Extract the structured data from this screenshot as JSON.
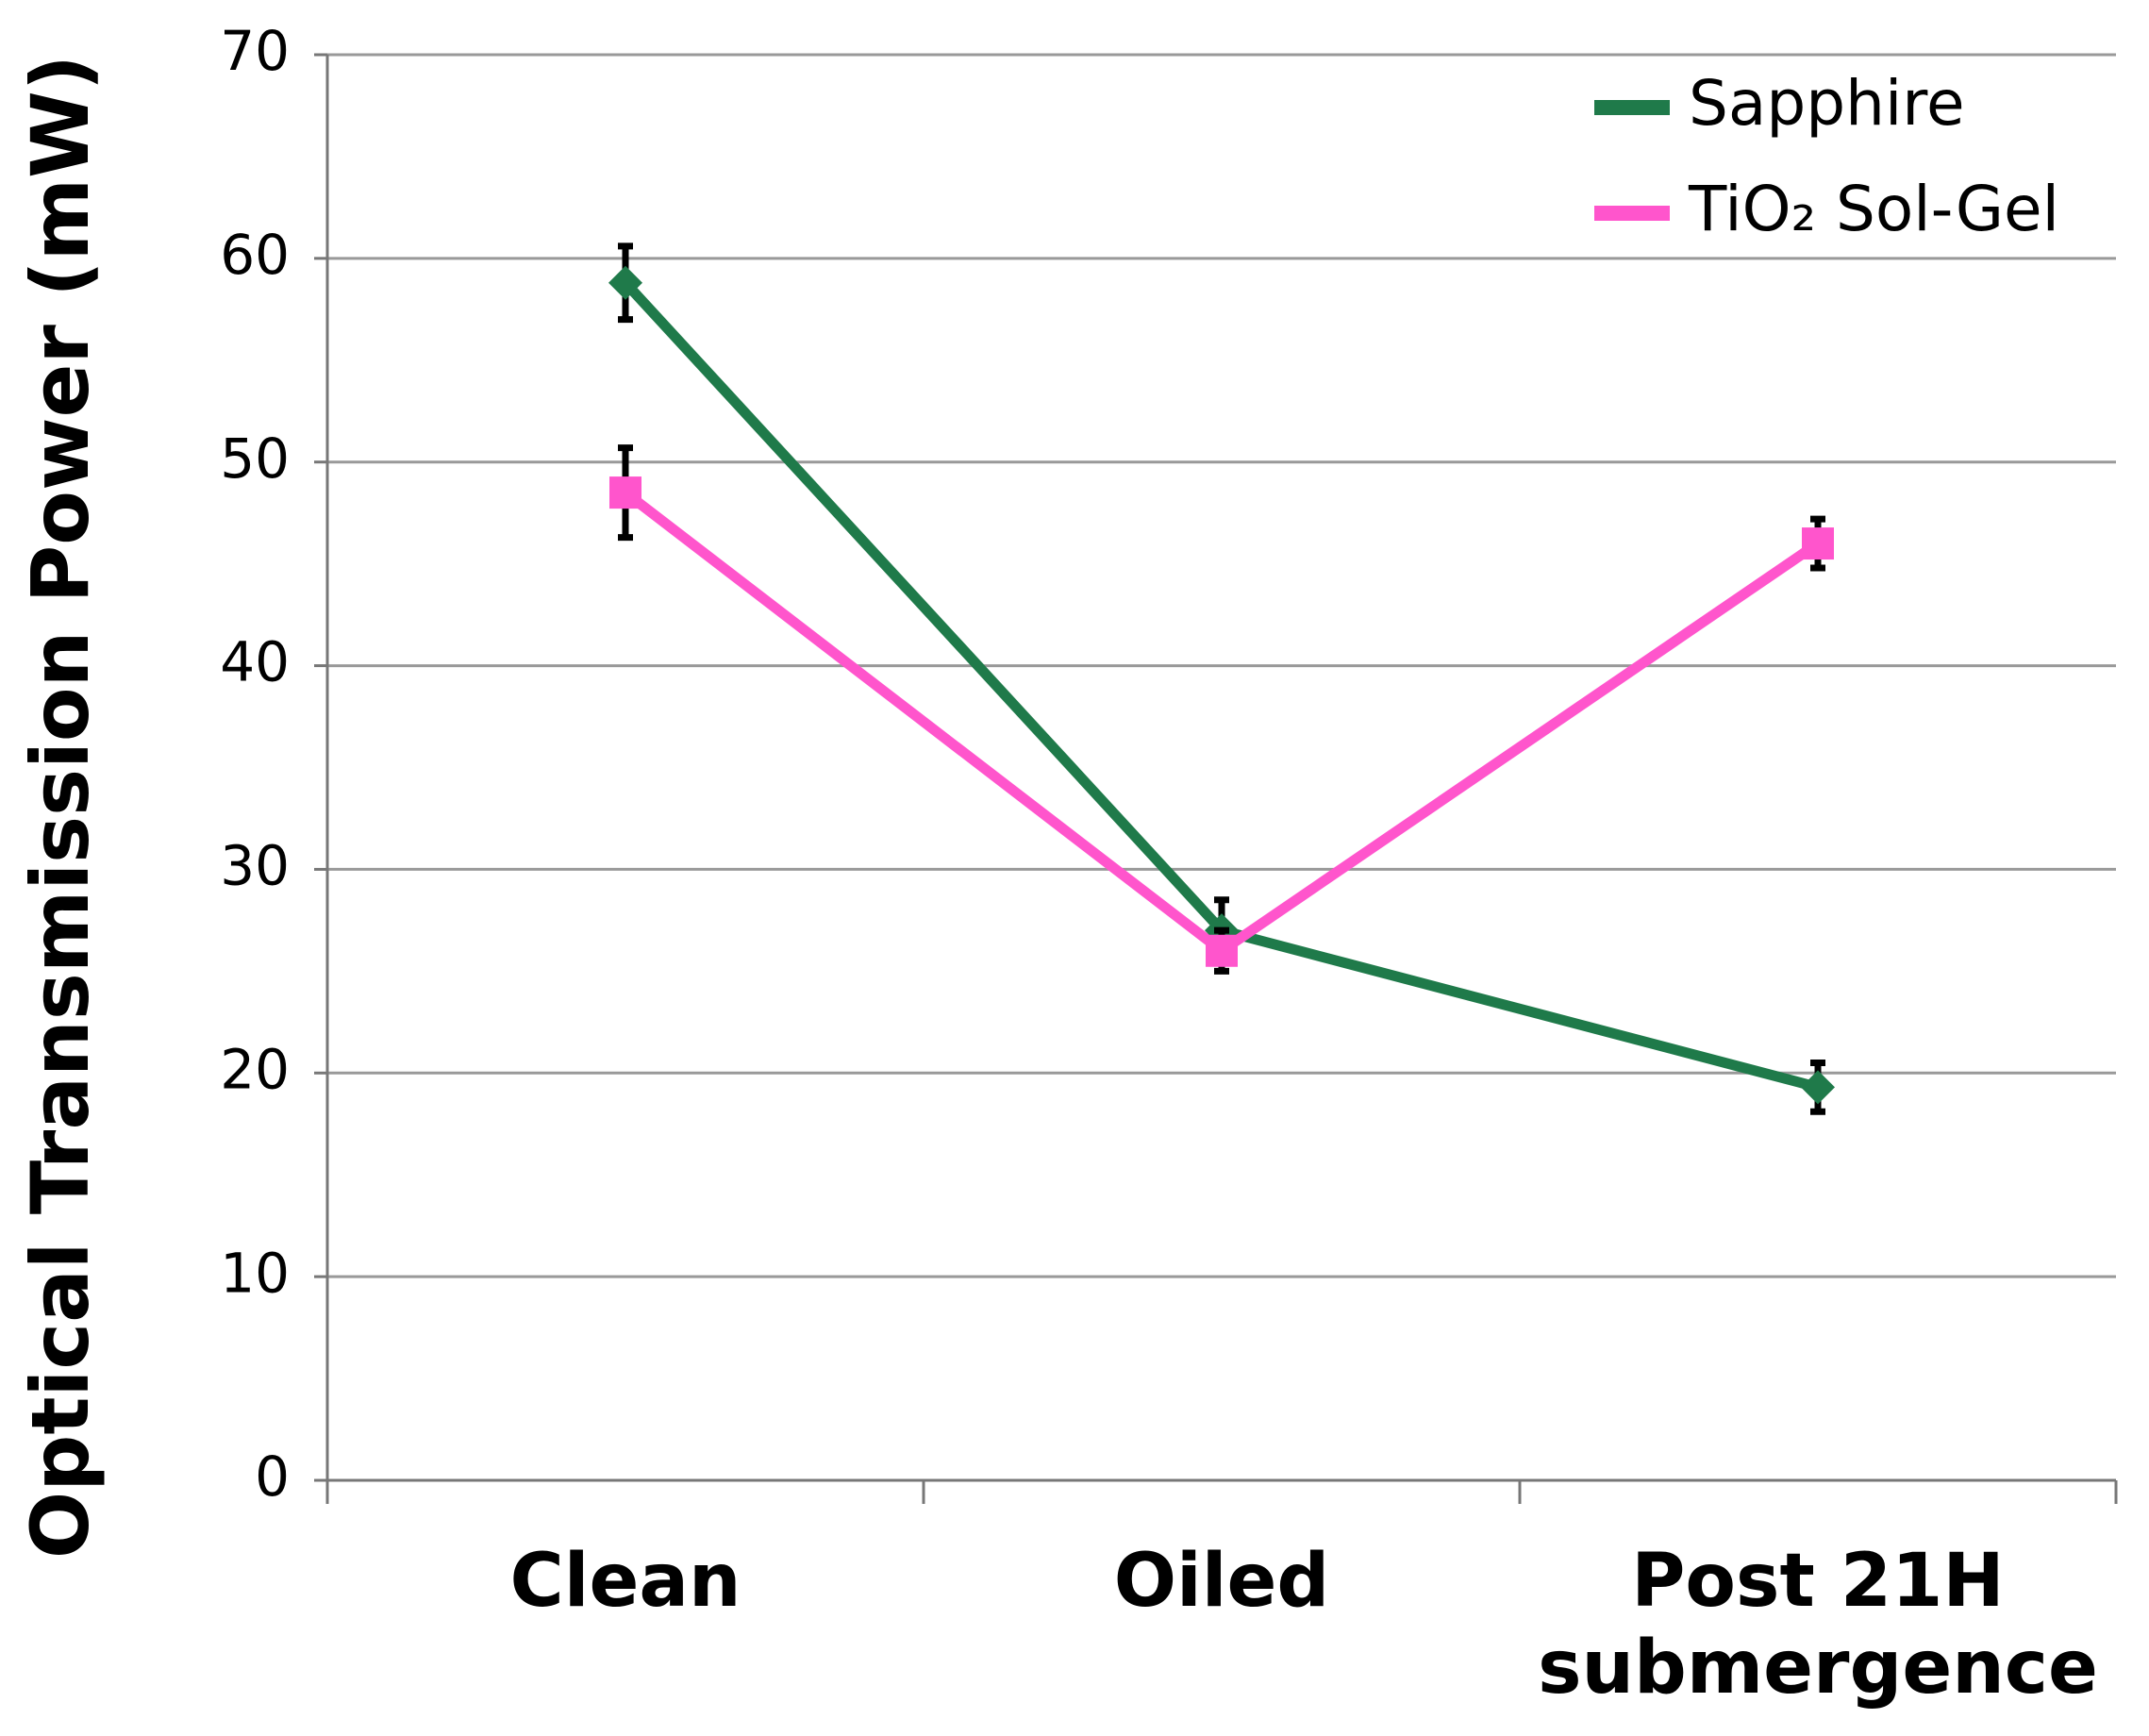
{
  "chart_data": {
    "type": "line",
    "y_label": "Optical Transmission Power (mW)",
    "categories": [
      "Clean",
      "Oiled",
      "Post 21H submergence"
    ],
    "series": [
      {
        "name": "Sapphire",
        "color": "#1f7a4a",
        "marker": "diamond",
        "values": [
          58.8,
          27,
          19.3
        ],
        "errors": [
          1.8,
          1.5,
          1.2
        ]
      },
      {
        "name": "TiO₂ Sol-Gel",
        "color": "#ff55cc",
        "marker": "square",
        "values": [
          48.5,
          26,
          46
        ],
        "errors": [
          2.2,
          1,
          1.2
        ]
      }
    ],
    "ylim": [
      0,
      70
    ],
    "yticks": [
      0,
      10,
      20,
      30,
      40,
      50,
      60,
      70
    ],
    "grid": true,
    "legend": "upper right"
  }
}
